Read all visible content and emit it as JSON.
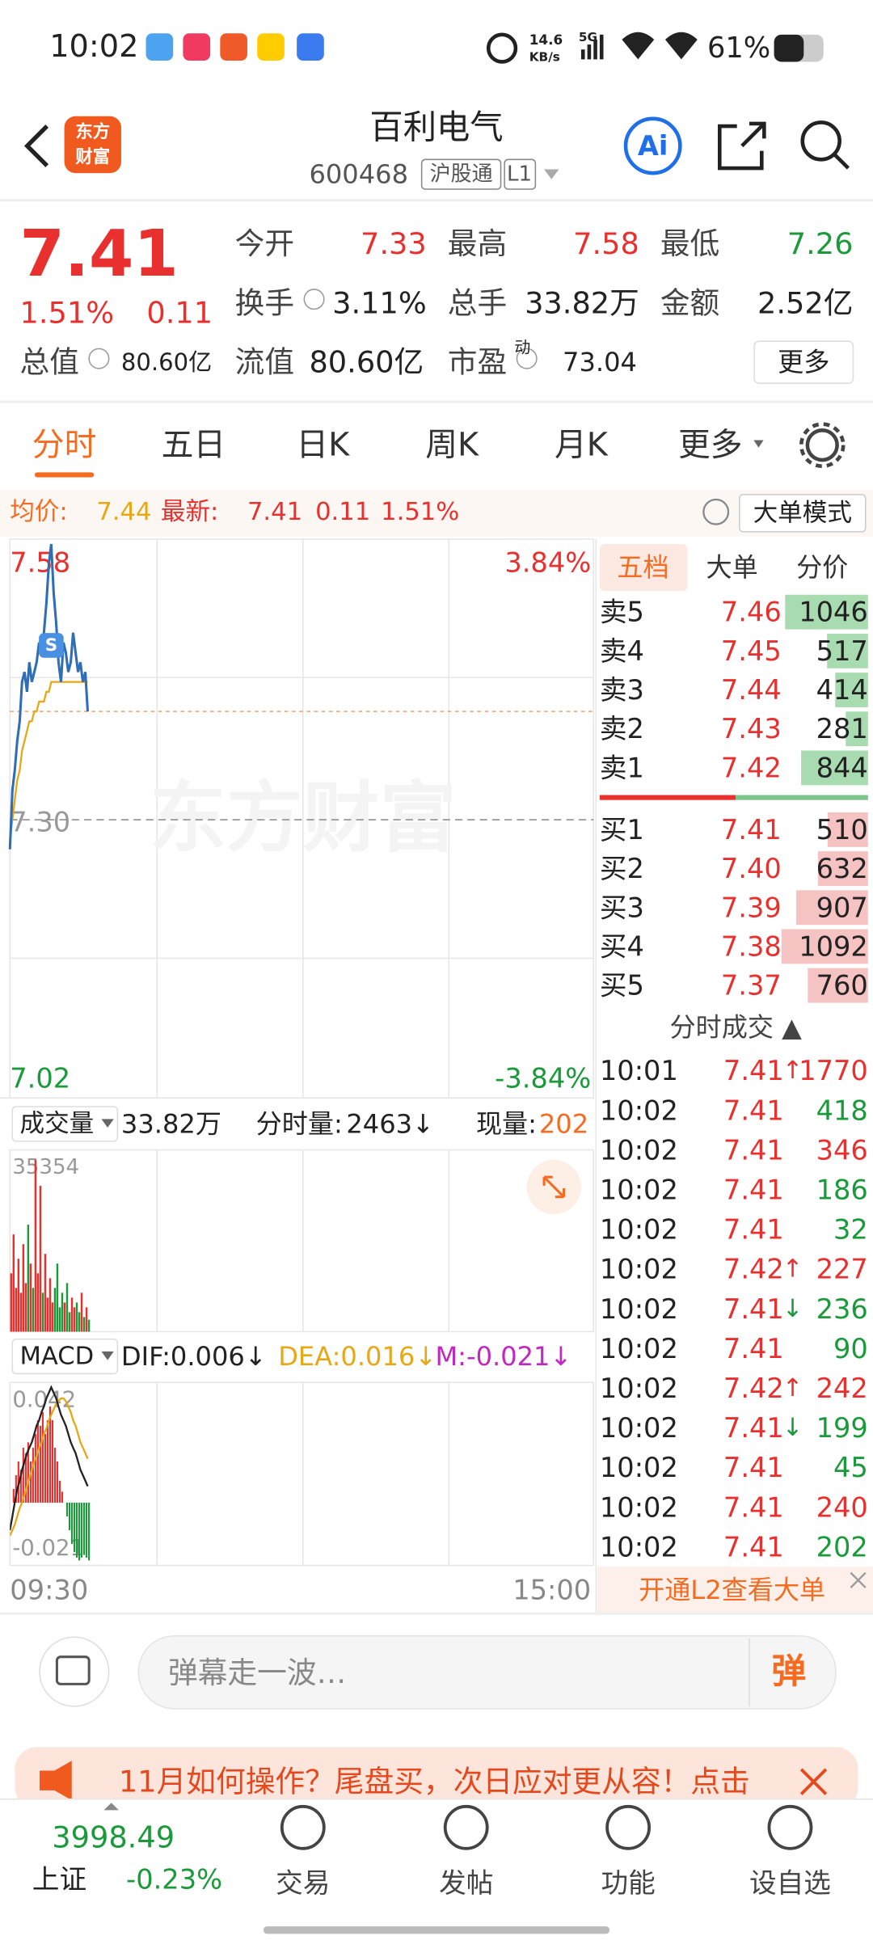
{
  "status_bar": {
    "time": "10:02",
    "speed": "14.6",
    "speed_unit": "KB/s",
    "network": "5G",
    "battery": "61%"
  },
  "header": {
    "logo": [
      "东方",
      "财富"
    ],
    "title": "百利电气",
    "code": "600468",
    "tags": [
      "沪股通",
      "L1"
    ],
    "ai": "Ai"
  },
  "quote": {
    "price": "7.41",
    "change_pct": "1.51%",
    "change": "0.11",
    "fields": [
      {
        "label": "今开",
        "value": "7.33"
      },
      {
        "label": "最高",
        "value": "7.58"
      },
      {
        "label": "最低",
        "value": "7.26"
      },
      {
        "label": "换手",
        "value": "3.11%"
      },
      {
        "label": "总手",
        "value": "33.82万"
      },
      {
        "label": "金额",
        "value": "2.52亿"
      },
      {
        "label": "总值",
        "value": "80.60亿"
      },
      {
        "label": "流值",
        "value": "80.60亿"
      },
      {
        "label": "市盈",
        "sup": "动",
        "value": "73.04"
      }
    ],
    "more": "更多"
  },
  "tabs": {
    "items": [
      "分时",
      "五日",
      "日K",
      "周K",
      "月K",
      "更多"
    ],
    "active": 0
  },
  "info_bar": {
    "avg_label": "均价:",
    "avg": "7.44",
    "latest_label": "最新:",
    "latest": "7.41",
    "change": "0.11",
    "pct": "1.51%",
    "mode": "大单模式"
  },
  "intraday": {
    "ylim": [
      7.02,
      7.58
    ],
    "yticks": [
      7.58,
      {
        "value": 7.3,
        "label": "7.30"
      },
      7.02
    ],
    "pct_labels": [
      "3.84%",
      "-3.84%"
    ],
    "xlim": [
      0,
      240
    ],
    "x_labels": [
      "09:30",
      "15:00"
    ],
    "watermark": "东方财富",
    "marker": "S",
    "price": [
      7.27,
      7.33,
      7.35,
      7.38,
      7.4,
      7.44,
      7.45,
      7.43,
      7.46,
      7.44,
      7.45,
      7.46,
      7.48,
      7.47,
      7.49,
      7.52,
      7.56,
      7.58,
      7.53,
      7.5,
      7.46,
      7.44,
      7.48,
      7.47,
      7.45,
      7.46,
      7.49,
      7.47,
      7.45,
      7.46,
      7.44,
      7.45,
      7.41
    ],
    "avg": [
      7.28,
      7.3,
      7.32,
      7.34,
      7.35,
      7.37,
      7.38,
      7.39,
      7.4,
      7.4,
      7.41,
      7.41,
      7.42,
      7.42,
      7.42,
      7.43,
      7.43,
      7.44,
      7.44,
      7.44,
      7.44,
      7.44,
      7.44,
      7.44,
      7.44,
      7.44,
      7.44,
      7.44,
      7.44,
      7.44,
      7.44,
      7.44,
      7.44
    ]
  },
  "volume": {
    "label": "成交量",
    "total": "33.82万",
    "minute_label": "分时量:",
    "minute": "2463↓",
    "now_label": "现量:",
    "now": "202",
    "ylim": [
      0,
      35354
    ],
    "yticks": [
      35354
    ],
    "values": [
      12000,
      20000,
      9000,
      15000,
      8000,
      18000,
      10000,
      22000,
      14000,
      9000,
      35354,
      12000,
      30000,
      8000,
      16000,
      7000,
      11000,
      6000,
      9000,
      14000,
      5000,
      8000,
      6000,
      10000,
      4000,
      7000,
      5000,
      6000,
      4000,
      8000,
      3000,
      5000,
      2463
    ]
  },
  "macd": {
    "label": "MACD",
    "dif": "DIF:0.006↓",
    "dea": "DEA:0.016↓",
    "m": "M:-0.021↓",
    "ylim": [
      -0.021,
      0.042
    ],
    "yticks": [
      0.042,
      -0.021
    ],
    "dif_values": [
      -0.01,
      -0.005,
      0,
      0.005,
      0.008,
      0.012,
      0.015,
      0.018,
      0.02,
      0.022,
      0.025,
      0.028,
      0.03,
      0.033,
      0.035,
      0.038,
      0.04,
      0.042,
      0.04,
      0.038,
      0.035,
      0.032,
      0.03,
      0.028,
      0.025,
      0.022,
      0.02,
      0.018,
      0.015,
      0.012,
      0.01,
      0.008,
      0.006
    ],
    "dea_values": [
      -0.012,
      -0.01,
      -0.008,
      -0.005,
      -0.002,
      0,
      0.003,
      0.006,
      0.009,
      0.012,
      0.015,
      0.017,
      0.02,
      0.022,
      0.025,
      0.027,
      0.03,
      0.032,
      0.034,
      0.036,
      0.037,
      0.038,
      0.038,
      0.037,
      0.035,
      0.033,
      0.03,
      0.028,
      0.025,
      0.022,
      0.02,
      0.018,
      0.016
    ],
    "m_values": [
      0,
      0.005,
      0.01,
      0.015,
      0.012,
      0.02,
      0.018,
      0.022,
      0.015,
      0.02,
      0.025,
      0.03,
      0.028,
      0.033,
      0.025,
      0.03,
      0.035,
      0.03,
      0.02,
      0.015,
      0.008,
      0.004,
      0,
      -0.005,
      -0.01,
      -0.015,
      -0.018,
      -0.02,
      -0.021,
      -0.02,
      -0.019,
      -0.02,
      -0.021
    ]
  },
  "order_book": {
    "tabs": [
      "五档",
      "大单",
      "分价"
    ],
    "active": 0,
    "sell": [
      {
        "label": "卖5",
        "price": "7.46",
        "volume": 1046
      },
      {
        "label": "卖4",
        "price": "7.45",
        "volume": 517
      },
      {
        "label": "卖3",
        "price": "7.44",
        "volume": 414
      },
      {
        "label": "卖2",
        "price": "7.43",
        "volume": 281
      },
      {
        "label": "卖1",
        "price": "7.42",
        "volume": 844
      }
    ],
    "buy": [
      {
        "label": "买1",
        "price": "7.41",
        "volume": 510
      },
      {
        "label": "买2",
        "price": "7.40",
        "volume": 632
      },
      {
        "label": "买3",
        "price": "7.39",
        "volume": 907
      },
      {
        "label": "买4",
        "price": "7.38",
        "volume": 1092
      },
      {
        "label": "买5",
        "price": "7.37",
        "volume": 760
      }
    ]
  },
  "trades": {
    "title": "分时成交 ▲",
    "rows": [
      {
        "time": "10:01",
        "price": "7.41",
        "dir": "↑",
        "volume": 1770,
        "color": "#e8312f"
      },
      {
        "time": "10:02",
        "price": "7.41",
        "volume": 418,
        "color": "#1a9a3a"
      },
      {
        "time": "10:02",
        "price": "7.41",
        "volume": 346,
        "color": "#e8312f"
      },
      {
        "time": "10:02",
        "price": "7.41",
        "volume": 186,
        "color": "#1a9a3a"
      },
      {
        "time": "10:02",
        "price": "7.41",
        "volume": 32,
        "color": "#1a9a3a"
      },
      {
        "time": "10:02",
        "price": "7.42",
        "dir": "↑",
        "volume": 227,
        "color": "#e8312f"
      },
      {
        "time": "10:02",
        "price": "7.41",
        "dir": "↓",
        "volume": 236,
        "color": "#1a9a3a"
      },
      {
        "time": "10:02",
        "price": "7.41",
        "volume": 90,
        "color": "#1a9a3a"
      },
      {
        "time": "10:02",
        "price": "7.42",
        "dir": "↑",
        "volume": 242,
        "color": "#e8312f"
      },
      {
        "time": "10:02",
        "price": "7.41",
        "dir": "↓",
        "volume": 199,
        "color": "#1a9a3a"
      },
      {
        "time": "10:02",
        "price": "7.41",
        "volume": 45,
        "color": "#1a9a3a"
      },
      {
        "time": "10:02",
        "price": "7.41",
        "volume": 240,
        "color": "#e8312f"
      },
      {
        "time": "10:02",
        "price": "7.41",
        "volume": 202,
        "color": "#1a9a3a"
      }
    ]
  },
  "l2_banner": "开通L2查看大单",
  "comment": {
    "placeholder": "弹幕走一波…",
    "button": "弹"
  },
  "ad": "11月如何操作？尾盘买，次日应对更从容！点击",
  "bottom_nav": {
    "index_value": "3998.49",
    "index_name": "上证",
    "index_change": "-0.23%",
    "items": [
      "交易",
      "发帖",
      "功能",
      "设自选"
    ]
  }
}
